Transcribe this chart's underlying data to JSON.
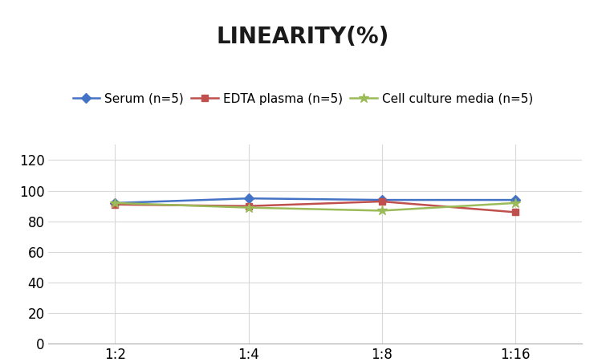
{
  "title": "LINEARITY(%)",
  "x_labels": [
    "1:2",
    "1:4",
    "1:8",
    "1:16"
  ],
  "x_positions": [
    0,
    1,
    2,
    3
  ],
  "series": [
    {
      "label": "Serum (n=5)",
      "values": [
        92,
        95,
        94,
        94
      ],
      "color": "#4472C4",
      "marker": "D",
      "markersize": 6,
      "linewidth": 1.8
    },
    {
      "label": "EDTA plasma (n=5)",
      "values": [
        91,
        90,
        93,
        86
      ],
      "color": "#C0504D",
      "marker": "s",
      "markersize": 6,
      "linewidth": 1.8
    },
    {
      "label": "Cell culture media (n=5)",
      "values": [
        92,
        89,
        87,
        92
      ],
      "color": "#9BBB59",
      "marker": "*",
      "markersize": 9,
      "linewidth": 1.8
    }
  ],
  "ylim": [
    0,
    130
  ],
  "yticks": [
    0,
    20,
    40,
    60,
    80,
    100,
    120
  ],
  "grid_color": "#D9D9D9",
  "background_color": "#FFFFFF",
  "title_fontsize": 20,
  "legend_fontsize": 11,
  "tick_fontsize": 12
}
